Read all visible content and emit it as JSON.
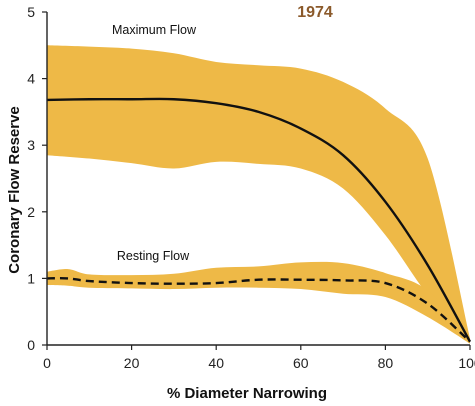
{
  "chart_data": {
    "type": "area",
    "title": "1974",
    "xlabel": "% Diameter Narrowing",
    "ylabel": "Coronary Flow Reserve",
    "xlim": [
      0,
      100
    ],
    "ylim": [
      0,
      5
    ],
    "xticks": [
      "0",
      "20",
      "40",
      "60",
      "80",
      "100"
    ],
    "yticks": [
      "0",
      "1",
      "2",
      "3",
      "4",
      "5"
    ],
    "grid": false,
    "annotations": [
      "Maximum Flow",
      "Resting Flow"
    ],
    "colors": {
      "band": "#EEB947",
      "line": "#111111",
      "title": "#8B5A2B"
    },
    "series": [
      {
        "style": "solid",
        "x": [
          0,
          10,
          20,
          30,
          40,
          50,
          60,
          70,
          80,
          90,
          100
        ],
        "y": [
          3.68,
          3.69,
          3.69,
          3.69,
          3.63,
          3.5,
          3.25,
          2.85,
          2.15,
          1.2,
          0.05
        ],
        "band_upper": [
          4.5,
          4.48,
          4.45,
          4.38,
          4.25,
          4.2,
          4.15,
          3.95,
          3.55,
          2.8,
          0.1
        ],
        "band_lower": [
          2.85,
          2.8,
          2.73,
          2.65,
          2.75,
          2.72,
          2.65,
          2.35,
          1.65,
          0.75,
          0.02
        ]
      },
      {
        "style": "dashed",
        "x": [
          0,
          5,
          10,
          20,
          30,
          40,
          50,
          60,
          70,
          80,
          90,
          100
        ],
        "y": [
          1.0,
          1.0,
          0.96,
          0.93,
          0.92,
          0.93,
          0.98,
          0.98,
          0.97,
          0.93,
          0.62,
          0.05
        ],
        "band_upper": [
          1.1,
          1.14,
          1.06,
          1.05,
          1.07,
          1.16,
          1.18,
          1.24,
          1.23,
          1.08,
          0.82,
          0.08
        ],
        "band_lower": [
          0.9,
          0.89,
          0.86,
          0.85,
          0.84,
          0.86,
          0.86,
          0.84,
          0.77,
          0.72,
          0.42,
          0.02
        ]
      }
    ]
  }
}
